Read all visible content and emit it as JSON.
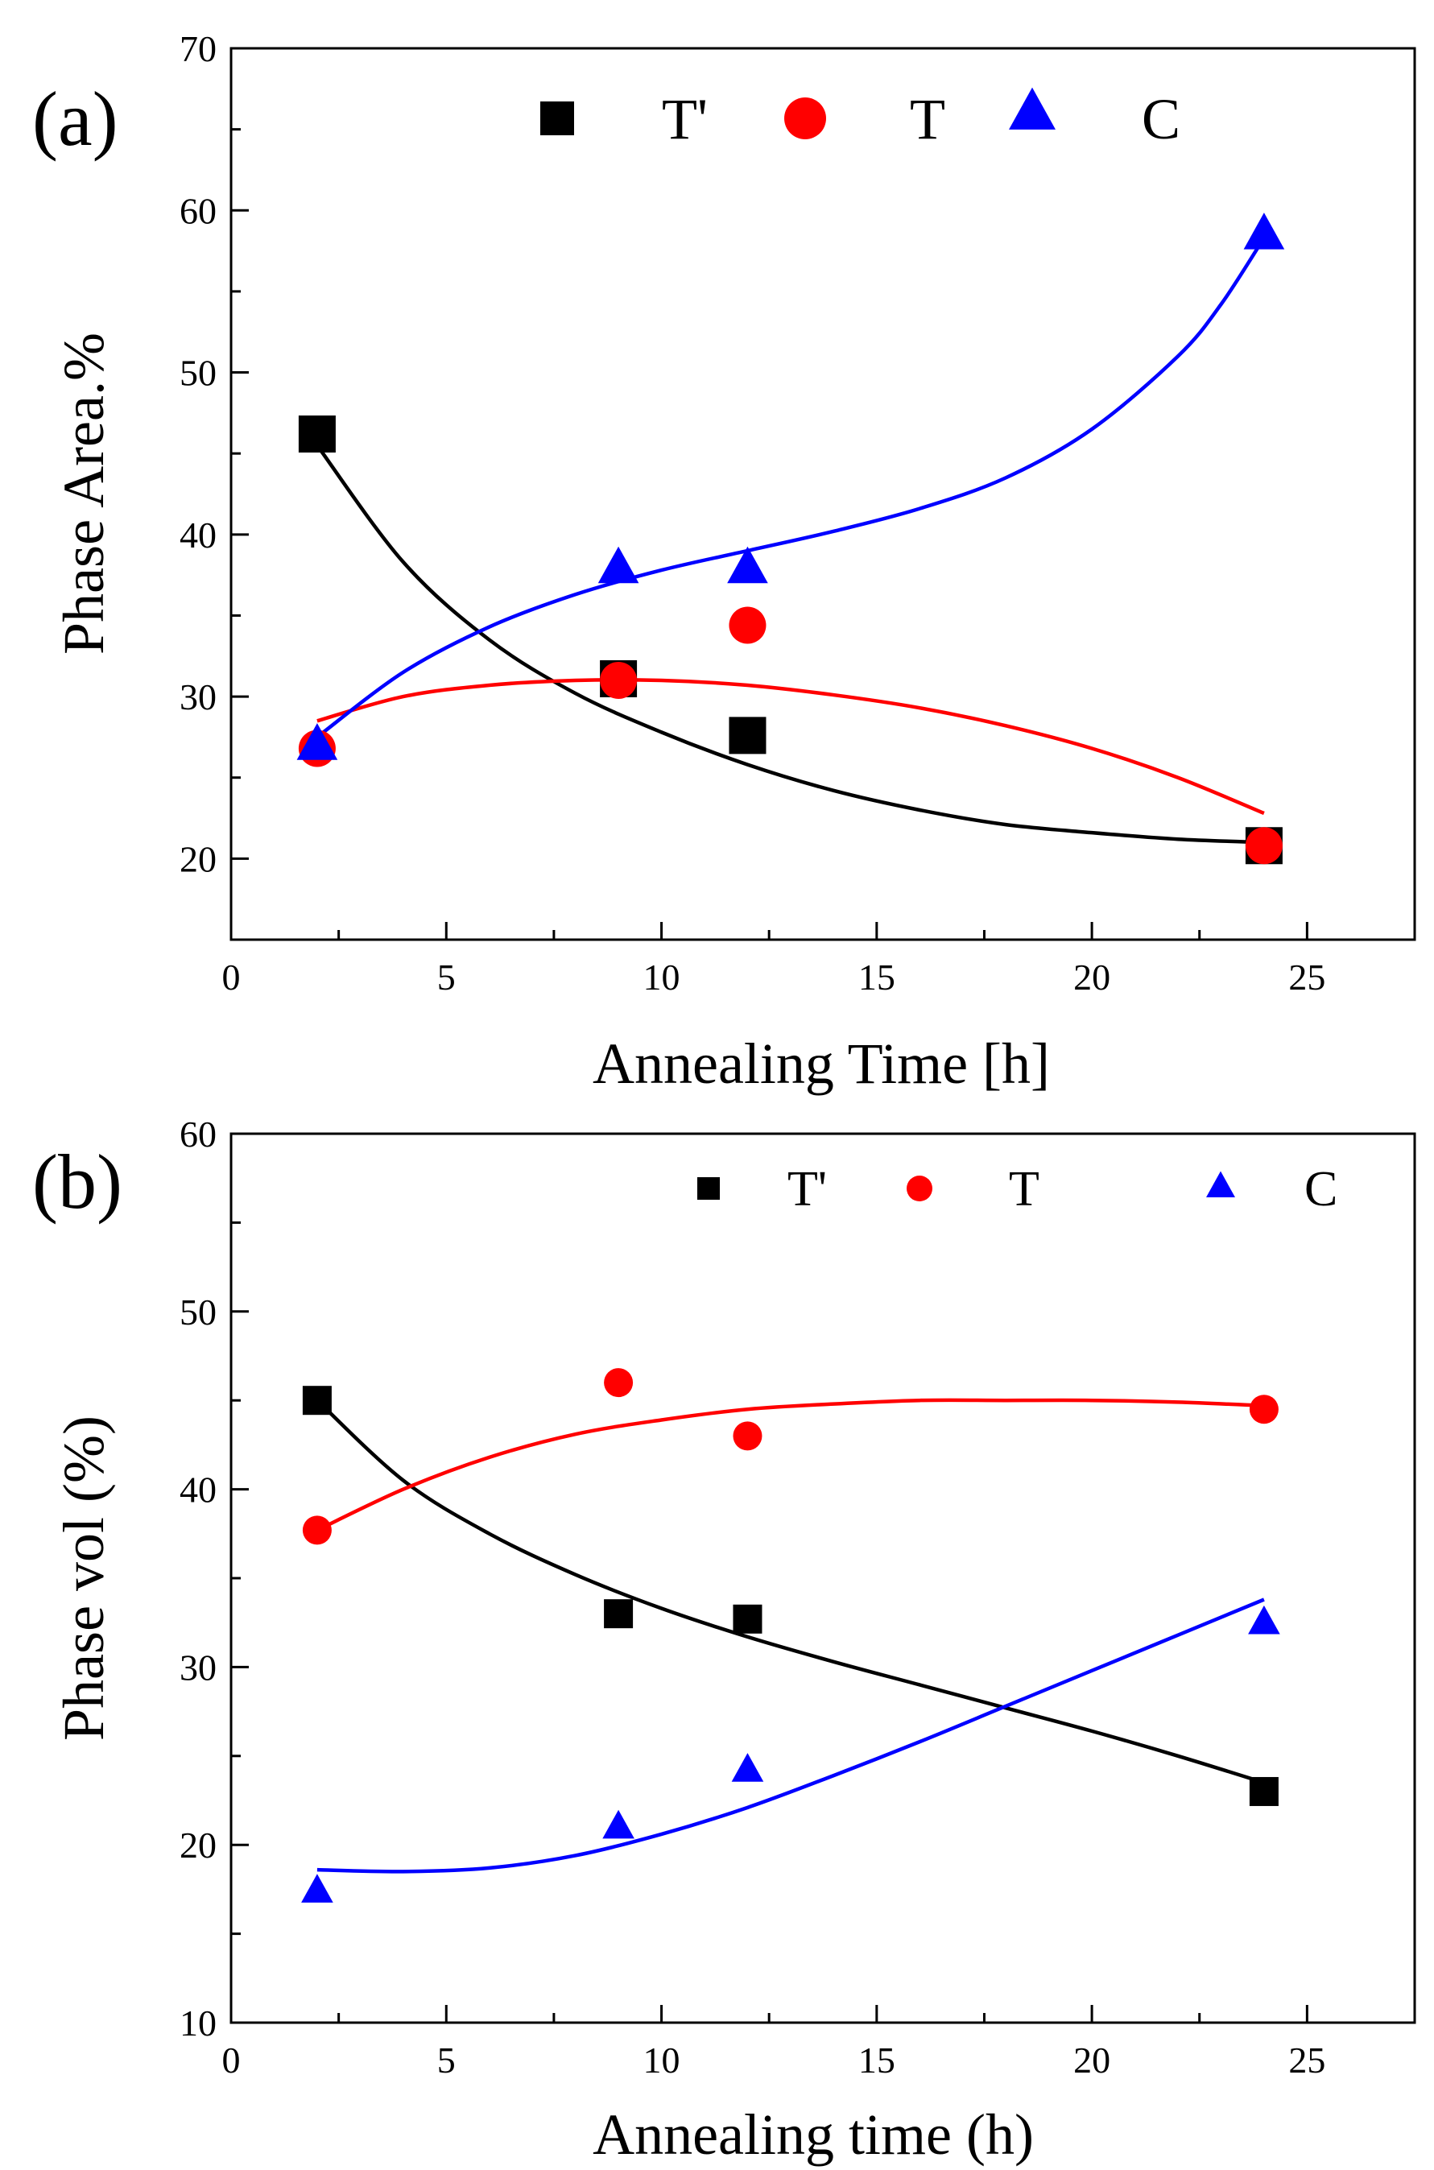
{
  "chart_data": [
    {
      "type": "scatter",
      "panel_label": "(a)",
      "xlabel": "Annealing Time [h]",
      "ylabel": "Phase Area.%",
      "xlim": [
        0,
        27.5
      ],
      "ylim": [
        15,
        70
      ],
      "xticks": [
        0,
        5,
        10,
        15,
        20,
        25
      ],
      "yticks": [
        20,
        30,
        40,
        50,
        60,
        70
      ],
      "legend": [
        "T'",
        "T",
        "C"
      ],
      "legend_position": "top",
      "series": [
        {
          "name": "T'",
          "color": "#000000",
          "marker": "square",
          "x": [
            2,
            9,
            12,
            24
          ],
          "y": [
            46.2,
            31.1,
            27.6,
            20.8
          ],
          "fit_x": [
            2,
            4,
            6,
            8,
            10,
            12,
            14,
            16,
            18,
            20,
            22,
            24
          ],
          "fit_y": [
            45.5,
            38.3,
            33.5,
            30.2,
            27.8,
            25.8,
            24.2,
            23.0,
            22.1,
            21.6,
            21.2,
            21.0
          ]
        },
        {
          "name": "T",
          "color": "#ff0000",
          "marker": "circle",
          "x": [
            2,
            9,
            12,
            24
          ],
          "y": [
            26.8,
            31.0,
            34.4,
            20.8
          ],
          "fit_x": [
            2,
            4,
            6,
            8,
            10,
            12,
            14,
            16,
            18,
            20,
            22,
            24
          ],
          "fit_y": [
            28.5,
            30.0,
            30.7,
            31.0,
            31.0,
            30.7,
            30.1,
            29.3,
            28.2,
            26.8,
            25.0,
            22.8
          ]
        },
        {
          "name": "C",
          "color": "#0000ff",
          "marker": "triangle",
          "x": [
            2,
            9,
            12,
            24
          ],
          "y": [
            27.0,
            37.9,
            37.9,
            58.5
          ],
          "fit_x": [
            2,
            4,
            6,
            8,
            10,
            12,
            14,
            16,
            18,
            20,
            22,
            23,
            24
          ],
          "fit_y": [
            27.5,
            31.5,
            34.3,
            36.3,
            37.8,
            39.0,
            40.2,
            41.6,
            43.5,
            46.5,
            51.0,
            54.2,
            58.3
          ]
        }
      ]
    },
    {
      "type": "scatter",
      "panel_label": "(b)",
      "xlabel": "Annealing time (h)",
      "ylabel": "Phase  vol (%)",
      "xlim": [
        0,
        27.5
      ],
      "ylim": [
        10,
        60
      ],
      "xticks": [
        0,
        5,
        10,
        15,
        20,
        25
      ],
      "yticks": [
        10,
        20,
        30,
        40,
        50,
        60
      ],
      "legend": [
        "T'",
        "T",
        "C"
      ],
      "legend_position": "top-right",
      "series": [
        {
          "name": "T'",
          "color": "#000000",
          "marker": "square",
          "x": [
            2,
            9,
            12,
            24
          ],
          "y": [
            45.0,
            33.0,
            32.7,
            23.0
          ],
          "fit_x": [
            2,
            4,
            6,
            8,
            10,
            12,
            14,
            16,
            18,
            20,
            22,
            24
          ],
          "fit_y": [
            45.0,
            40.5,
            37.5,
            35.2,
            33.3,
            31.7,
            30.3,
            29.0,
            27.7,
            26.4,
            25.0,
            23.5
          ]
        },
        {
          "name": "T",
          "color": "#ff0000",
          "marker": "circle",
          "x": [
            2,
            9,
            12,
            24
          ],
          "y": [
            37.7,
            46.0,
            43.0,
            44.5
          ],
          "fit_x": [
            2,
            4,
            6,
            8,
            10,
            12,
            14,
            16,
            18,
            20,
            22,
            24
          ],
          "fit_y": [
            37.7,
            40.0,
            41.8,
            43.1,
            43.9,
            44.5,
            44.8,
            45.0,
            45.0,
            45.0,
            44.9,
            44.7
          ]
        },
        {
          "name": "C",
          "color": "#0000ff",
          "marker": "triangle",
          "x": [
            2,
            9,
            12,
            24
          ],
          "y": [
            17.4,
            21.0,
            24.2,
            32.5
          ],
          "fit_x": [
            2,
            4,
            6,
            8,
            10,
            12,
            14,
            16,
            18,
            20,
            22,
            24
          ],
          "fit_y": [
            18.6,
            18.5,
            18.7,
            19.4,
            20.6,
            22.1,
            23.9,
            25.8,
            27.8,
            29.8,
            31.8,
            33.8
          ]
        }
      ]
    }
  ]
}
